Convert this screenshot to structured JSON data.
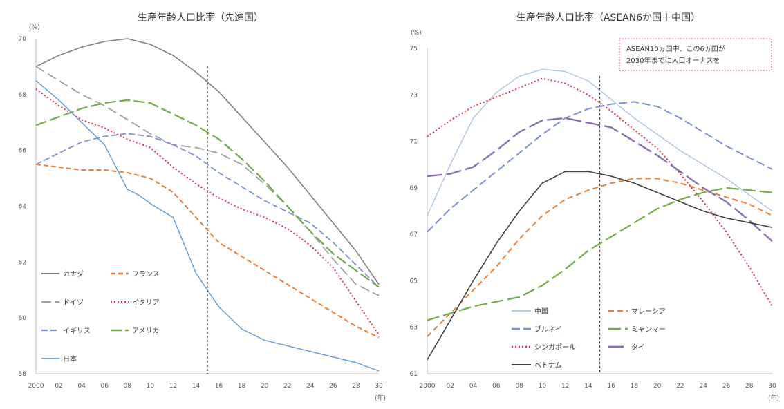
{
  "chart_data": [
    {
      "type": "line",
      "title": "生産年齢人口比率（先進国）",
      "ylabel": "(%)",
      "xlabel": "(年)",
      "ylim": [
        58,
        70
      ],
      "xlim": [
        2000,
        2030
      ],
      "yticks": [
        "58",
        "60",
        "62",
        "64",
        "66",
        "68",
        "70"
      ],
      "xticks": [
        "2000",
        "02",
        "04",
        "06",
        "08",
        "10",
        "12",
        "14",
        "16",
        "18",
        "20",
        "22",
        "24",
        "26",
        "28",
        "30"
      ],
      "projection_start": 2015,
      "legend": "bottom-left",
      "grid": false,
      "series": [
        {
          "name": "カナダ",
          "color": "#7f7f7f",
          "dash": "",
          "width": 1.6,
          "points": [
            [
              2000,
              69.0
            ],
            [
              2002,
              69.4
            ],
            [
              2004,
              69.7
            ],
            [
              2006,
              69.9
            ],
            [
              2008,
              70.0
            ],
            [
              2010,
              69.8
            ],
            [
              2012,
              69.4
            ],
            [
              2014,
              68.8
            ],
            [
              2016,
              68.1
            ],
            [
              2018,
              67.2
            ],
            [
              2020,
              66.3
            ],
            [
              2022,
              65.4
            ],
            [
              2024,
              64.4
            ],
            [
              2026,
              63.4
            ],
            [
              2028,
              62.4
            ],
            [
              2030,
              61.2
            ]
          ]
        },
        {
          "name": "フランス",
          "color": "#ed7d31",
          "dash": "7 4",
          "width": 2.0,
          "points": [
            [
              2000,
              65.5
            ],
            [
              2002,
              65.4
            ],
            [
              2004,
              65.3
            ],
            [
              2006,
              65.3
            ],
            [
              2008,
              65.2
            ],
            [
              2010,
              65.0
            ],
            [
              2012,
              64.5
            ],
            [
              2014,
              63.6
            ],
            [
              2016,
              62.7
            ],
            [
              2018,
              62.2
            ],
            [
              2020,
              61.7
            ],
            [
              2022,
              61.2
            ],
            [
              2024,
              60.7
            ],
            [
              2026,
              60.2
            ],
            [
              2028,
              59.7
            ],
            [
              2030,
              59.3
            ]
          ]
        },
        {
          "name": "ドイツ",
          "color": "#a0a0a0",
          "dash": "14 6",
          "width": 1.8,
          "points": [
            [
              2000,
              69.0
            ],
            [
              2002,
              68.5
            ],
            [
              2004,
              68.0
            ],
            [
              2006,
              67.6
            ],
            [
              2008,
              67.1
            ],
            [
              2010,
              66.6
            ],
            [
              2012,
              66.2
            ],
            [
              2014,
              66.1
            ],
            [
              2016,
              65.9
            ],
            [
              2018,
              65.5
            ],
            [
              2020,
              64.8
            ],
            [
              2022,
              64.0
            ],
            [
              2024,
              63.1
            ],
            [
              2026,
              62.1
            ],
            [
              2028,
              61.2
            ],
            [
              2030,
              60.8
            ]
          ]
        },
        {
          "name": "イタリア",
          "color": "#e0304a",
          "dash": "2 3",
          "width": 2.0,
          "points": [
            [
              2000,
              68.2
            ],
            [
              2002,
              67.6
            ],
            [
              2004,
              67.1
            ],
            [
              2006,
              66.8
            ],
            [
              2008,
              66.4
            ],
            [
              2010,
              66.1
            ],
            [
              2012,
              65.4
            ],
            [
              2014,
              64.8
            ],
            [
              2016,
              64.3
            ],
            [
              2018,
              63.9
            ],
            [
              2020,
              63.6
            ],
            [
              2022,
              63.2
            ],
            [
              2024,
              62.6
            ],
            [
              2026,
              61.8
            ],
            [
              2028,
              60.6
            ],
            [
              2030,
              59.4
            ]
          ]
        },
        {
          "name": "イギリス",
          "color": "#7b8fd6",
          "dash": "9 4",
          "width": 1.8,
          "points": [
            [
              2000,
              65.5
            ],
            [
              2002,
              65.9
            ],
            [
              2004,
              66.3
            ],
            [
              2006,
              66.5
            ],
            [
              2008,
              66.6
            ],
            [
              2010,
              66.5
            ],
            [
              2012,
              66.2
            ],
            [
              2014,
              65.8
            ],
            [
              2016,
              65.2
            ],
            [
              2018,
              64.7
            ],
            [
              2020,
              64.2
            ],
            [
              2022,
              63.8
            ],
            [
              2024,
              63.4
            ],
            [
              2026,
              62.7
            ],
            [
              2028,
              61.9
            ],
            [
              2030,
              61.1
            ]
          ]
        },
        {
          "name": "アメリカ",
          "color": "#70ad47",
          "dash": "16 5",
          "width": 2.2,
          "points": [
            [
              2000,
              66.9
            ],
            [
              2002,
              67.2
            ],
            [
              2004,
              67.5
            ],
            [
              2006,
              67.7
            ],
            [
              2008,
              67.8
            ],
            [
              2010,
              67.7
            ],
            [
              2012,
              67.3
            ],
            [
              2014,
              66.9
            ],
            [
              2016,
              66.4
            ],
            [
              2018,
              65.7
            ],
            [
              2020,
              64.9
            ],
            [
              2022,
              64.0
            ],
            [
              2024,
              63.1
            ],
            [
              2026,
              62.3
            ],
            [
              2028,
              61.7
            ],
            [
              2030,
              61.1
            ]
          ]
        },
        {
          "name": "日本",
          "color": "#5b9bd5",
          "dash": "",
          "width": 1.4,
          "points": [
            [
              2000,
              68.5
            ],
            [
              2002,
              67.8
            ],
            [
              2004,
              67.0
            ],
            [
              2006,
              66.2
            ],
            [
              2008,
              64.6
            ],
            [
              2009,
              64.4
            ],
            [
              2010,
              64.1
            ],
            [
              2012,
              63.6
            ],
            [
              2014,
              61.6
            ],
            [
              2016,
              60.4
            ],
            [
              2018,
              59.6
            ],
            [
              2020,
              59.2
            ],
            [
              2022,
              59.0
            ],
            [
              2024,
              58.8
            ],
            [
              2026,
              58.6
            ],
            [
              2028,
              58.4
            ],
            [
              2030,
              58.1
            ]
          ]
        }
      ]
    },
    {
      "type": "line",
      "title": "生産年齢人口比率（ASEAN6か国＋中国）",
      "ylabel": "(%)",
      "xlabel": "(年)",
      "ylim": [
        61,
        75
      ],
      "xlim": [
        2000,
        2030
      ],
      "yticks": [
        "61",
        "63",
        "65",
        "67",
        "69",
        "71",
        "73",
        "75"
      ],
      "xticks": [
        "2000",
        "02",
        "04",
        "06",
        "08",
        "10",
        "12",
        "14",
        "16",
        "18",
        "20",
        "22",
        "24",
        "26",
        "28",
        "30"
      ],
      "projection_start": 2015,
      "legend": "bottom-center",
      "annotation": [
        "ASEAN10ヵ国中、この6ヵ国が",
        "2030年までに人口オーナスを"
      ],
      "grid": false,
      "series": [
        {
          "name": "中国",
          "color": "#a9c5e6",
          "dash": "",
          "width": 1.4,
          "points": [
            [
              2000,
              67.8
            ],
            [
              2002,
              70.0
            ],
            [
              2004,
              72.0
            ],
            [
              2006,
              73.1
            ],
            [
              2008,
              73.8
            ],
            [
              2010,
              74.1
            ],
            [
              2012,
              74.0
            ],
            [
              2014,
              73.6
            ],
            [
              2016,
              72.8
            ],
            [
              2018,
              72.0
            ],
            [
              2020,
              71.3
            ],
            [
              2022,
              70.6
            ],
            [
              2024,
              70.0
            ],
            [
              2026,
              69.4
            ],
            [
              2028,
              68.7
            ],
            [
              2030,
              68.0
            ]
          ]
        },
        {
          "name": "マレーシア",
          "color": "#ed7d31",
          "dash": "8 5",
          "width": 2.0,
          "points": [
            [
              2000,
              62.6
            ],
            [
              2002,
              63.6
            ],
            [
              2004,
              64.6
            ],
            [
              2006,
              65.6
            ],
            [
              2008,
              66.8
            ],
            [
              2010,
              67.8
            ],
            [
              2012,
              68.5
            ],
            [
              2014,
              68.9
            ],
            [
              2016,
              69.2
            ],
            [
              2018,
              69.4
            ],
            [
              2020,
              69.4
            ],
            [
              2022,
              69.2
            ],
            [
              2024,
              68.9
            ],
            [
              2026,
              68.6
            ],
            [
              2028,
              68.3
            ],
            [
              2030,
              67.8
            ]
          ]
        },
        {
          "name": "ブルネイ",
          "color": "#7b8fd6",
          "dash": "12 5",
          "width": 2.0,
          "points": [
            [
              2000,
              67.1
            ],
            [
              2002,
              68.1
            ],
            [
              2004,
              68.9
            ],
            [
              2006,
              69.7
            ],
            [
              2008,
              70.5
            ],
            [
              2010,
              71.3
            ],
            [
              2012,
              72.0
            ],
            [
              2014,
              72.4
            ],
            [
              2016,
              72.6
            ],
            [
              2018,
              72.7
            ],
            [
              2020,
              72.5
            ],
            [
              2022,
              72.0
            ],
            [
              2024,
              71.4
            ],
            [
              2026,
              70.8
            ],
            [
              2028,
              70.3
            ],
            [
              2030,
              69.8
            ]
          ]
        },
        {
          "name": "ミャンマー",
          "color": "#70ad47",
          "dash": "18 6",
          "width": 2.2,
          "points": [
            [
              2000,
              63.3
            ],
            [
              2002,
              63.6
            ],
            [
              2004,
              63.9
            ],
            [
              2006,
              64.1
            ],
            [
              2008,
              64.3
            ],
            [
              2010,
              64.8
            ],
            [
              2012,
              65.5
            ],
            [
              2014,
              66.3
            ],
            [
              2016,
              66.9
            ],
            [
              2018,
              67.5
            ],
            [
              2020,
              68.1
            ],
            [
              2022,
              68.5
            ],
            [
              2024,
              68.8
            ],
            [
              2026,
              69.0
            ],
            [
              2028,
              68.9
            ],
            [
              2030,
              68.8
            ]
          ]
        },
        {
          "name": "シンガポール",
          "color": "#e0304a",
          "dash": "2 3",
          "width": 2.0,
          "points": [
            [
              2000,
              71.2
            ],
            [
              2002,
              71.9
            ],
            [
              2004,
              72.5
            ],
            [
              2006,
              72.9
            ],
            [
              2008,
              73.3
            ],
            [
              2010,
              73.7
            ],
            [
              2012,
              73.5
            ],
            [
              2014,
              73.0
            ],
            [
              2016,
              72.3
            ],
            [
              2018,
              71.5
            ],
            [
              2020,
              70.7
            ],
            [
              2022,
              69.6
            ],
            [
              2024,
              68.4
            ],
            [
              2026,
              67.1
            ],
            [
              2028,
              65.6
            ],
            [
              2030,
              63.9
            ]
          ]
        },
        {
          "name": "タイ",
          "color": "#8a6fb0",
          "dash": "22 6",
          "width": 2.4,
          "points": [
            [
              2000,
              69.5
            ],
            [
              2002,
              69.6
            ],
            [
              2004,
              69.9
            ],
            [
              2006,
              70.6
            ],
            [
              2008,
              71.4
            ],
            [
              2010,
              71.9
            ],
            [
              2012,
              72.0
            ],
            [
              2014,
              71.8
            ],
            [
              2016,
              71.6
            ],
            [
              2018,
              71.0
            ],
            [
              2020,
              70.4
            ],
            [
              2022,
              69.7
            ],
            [
              2024,
              69.0
            ],
            [
              2026,
              68.4
            ],
            [
              2028,
              67.6
            ],
            [
              2030,
              66.7
            ]
          ]
        },
        {
          "name": "ベトナム",
          "color": "#404040",
          "dash": "",
          "width": 1.6,
          "points": [
            [
              2000,
              61.6
            ],
            [
              2002,
              63.3
            ],
            [
              2004,
              65.0
            ],
            [
              2006,
              66.6
            ],
            [
              2008,
              68.0
            ],
            [
              2010,
              69.2
            ],
            [
              2012,
              69.7
            ],
            [
              2014,
              69.7
            ],
            [
              2016,
              69.5
            ],
            [
              2018,
              69.2
            ],
            [
              2020,
              68.8
            ],
            [
              2022,
              68.4
            ],
            [
              2024,
              68.0
            ],
            [
              2026,
              67.7
            ],
            [
              2028,
              67.5
            ],
            [
              2030,
              67.3
            ]
          ]
        }
      ]
    }
  ]
}
